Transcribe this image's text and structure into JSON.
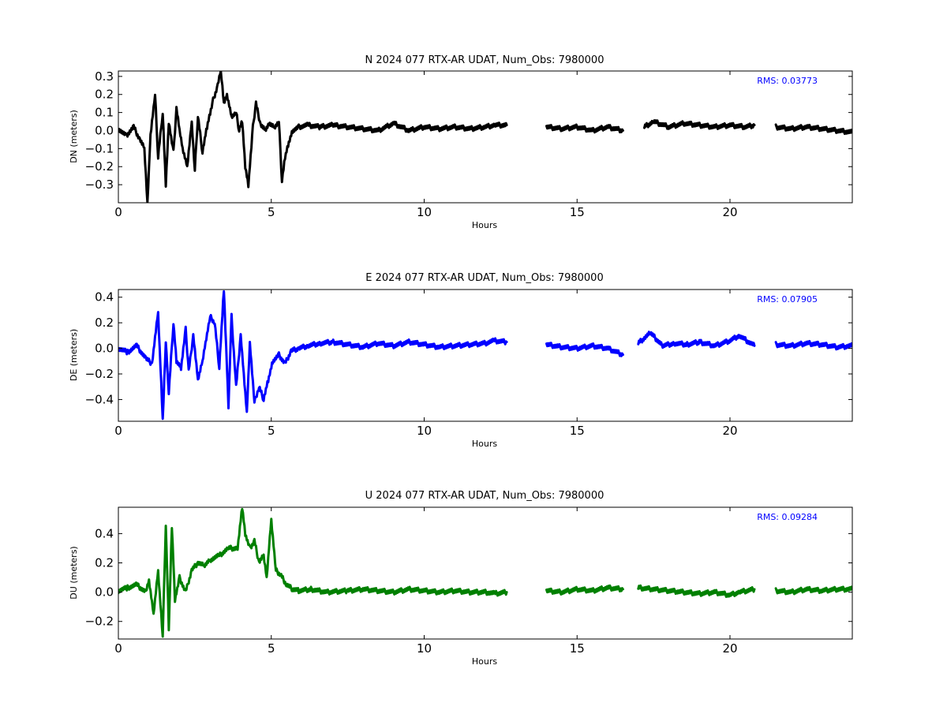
{
  "chart_data": [
    {
      "type": "line",
      "title": "N 2024 077 RTX-AR  UDAT, Num_Obs: 7980000",
      "xlabel": "Hours",
      "ylabel": "DN (meters)",
      "xlim": [
        0,
        24
      ],
      "ylim": [
        -0.4,
        0.33
      ],
      "xticks": [
        "0",
        "5",
        "10",
        "15",
        "20"
      ],
      "yticks": [
        "0.3",
        "0.2",
        "0.1",
        "0.0",
        "−0.1",
        "−0.2",
        "−0.3"
      ],
      "ytick_values": [
        0.3,
        0.2,
        0.1,
        0.0,
        -0.1,
        -0.2,
        -0.3
      ],
      "annotation": "RMS:  0.03773",
      "annotation_color": "#0000ff",
      "series": [
        {
          "color": "#000000",
          "x": [
            0.0,
            0.25,
            0.5,
            0.7,
            0.85,
            0.95,
            1.05,
            1.2,
            1.3,
            1.45,
            1.55,
            1.65,
            1.8,
            1.9,
            2.0,
            2.1,
            2.25,
            2.4,
            2.5,
            2.6,
            2.75,
            2.9,
            3.0,
            3.1,
            3.25,
            3.35,
            3.45,
            3.55,
            3.7,
            3.85,
            3.95,
            4.05,
            4.15,
            4.25,
            4.4,
            4.5,
            4.65,
            4.8,
            4.95,
            5.1,
            5.25,
            5.35,
            5.45,
            5.55,
            5.7,
            5.9,
            6.2,
            6.6,
            7.0,
            7.5,
            8.0,
            8.5,
            9.0,
            9.5,
            10.0,
            10.5,
            11.0,
            11.5,
            12.0,
            12.3,
            12.7,
            13.5,
            14.0,
            14.5,
            15.0,
            15.5,
            16.0,
            16.5,
            16.7,
            17.2,
            17.5,
            18.0,
            18.5,
            19.0,
            19.5,
            20.0,
            20.5,
            20.8,
            21.0,
            21.5,
            22.0,
            22.5,
            23.0,
            23.5,
            24.0
          ],
          "y": [
            0.01,
            -0.03,
            0.02,
            -0.05,
            -0.1,
            -0.4,
            -0.02,
            0.2,
            -0.15,
            0.1,
            -0.3,
            0.05,
            -0.12,
            0.12,
            0.0,
            -0.1,
            -0.2,
            0.05,
            -0.22,
            0.08,
            -0.12,
            0.02,
            0.1,
            0.17,
            0.25,
            0.33,
            0.15,
            0.2,
            0.08,
            0.1,
            0.0,
            0.05,
            -0.2,
            -0.3,
            0.02,
            0.15,
            0.03,
            0.0,
            0.04,
            0.02,
            0.05,
            -0.28,
            -0.15,
            -0.08,
            0.0,
            0.02,
            0.03,
            0.02,
            0.03,
            0.02,
            0.01,
            0.0,
            0.04,
            0.0,
            0.02,
            0.01,
            0.02,
            0.01,
            0.02,
            0.03,
            0.03,
            null,
            0.02,
            0.01,
            0.02,
            0.0,
            0.02,
            0.0,
            null,
            0.02,
            0.05,
            0.02,
            0.04,
            0.03,
            0.02,
            0.03,
            0.02,
            0.03,
            null,
            0.02,
            0.01,
            0.02,
            0.01,
            0.0,
            -0.01
          ]
        }
      ]
    },
    {
      "type": "line",
      "title": "E 2024 077 RTX-AR  UDAT, Num_Obs: 7980000",
      "xlabel": "Hours",
      "ylabel": "DE (meters)",
      "xlim": [
        0,
        24
      ],
      "ylim": [
        -0.57,
        0.46
      ],
      "xticks": [
        "0",
        "5",
        "10",
        "15",
        "20"
      ],
      "yticks": [
        "0.4",
        "0.2",
        "0.0",
        "−0.2",
        "−0.4"
      ],
      "ytick_values": [
        0.4,
        0.2,
        0.0,
        -0.2,
        -0.4
      ],
      "annotation": "RMS:  0.07905",
      "annotation_color": "#0000ff",
      "series": [
        {
          "color": "#0000ff",
          "x": [
            0.0,
            0.3,
            0.6,
            0.9,
            1.1,
            1.3,
            1.45,
            1.55,
            1.65,
            1.8,
            1.9,
            2.05,
            2.2,
            2.3,
            2.45,
            2.6,
            2.75,
            2.85,
            3.0,
            3.15,
            3.3,
            3.45,
            3.6,
            3.7,
            3.85,
            4.0,
            4.1,
            4.2,
            4.3,
            4.45,
            4.6,
            4.75,
            4.9,
            5.05,
            5.25,
            5.45,
            5.65,
            5.9,
            6.2,
            6.6,
            7.0,
            7.5,
            8.0,
            8.5,
            9.0,
            9.5,
            10.0,
            10.5,
            11.0,
            11.5,
            12.0,
            12.3,
            12.7,
            13.5,
            14.0,
            14.5,
            15.0,
            15.5,
            16.0,
            16.5,
            16.7,
            17.0,
            17.4,
            17.8,
            18.2,
            18.6,
            19.0,
            19.5,
            20.0,
            20.3,
            20.8,
            21.0,
            21.5,
            22.0,
            22.5,
            23.0,
            23.5,
            24.0
          ],
          "y": [
            0.0,
            -0.03,
            0.02,
            -0.08,
            -0.12,
            0.28,
            -0.55,
            0.05,
            -0.35,
            0.2,
            -0.1,
            -0.15,
            0.15,
            -0.18,
            0.1,
            -0.25,
            -0.1,
            0.05,
            0.25,
            0.2,
            -0.15,
            0.46,
            -0.45,
            0.25,
            -0.3,
            0.1,
            -0.2,
            -0.5,
            0.05,
            -0.42,
            -0.3,
            -0.4,
            -0.25,
            -0.1,
            -0.05,
            -0.12,
            -0.02,
            0.0,
            0.02,
            0.04,
            0.05,
            0.03,
            0.01,
            0.04,
            0.02,
            0.05,
            0.03,
            0.01,
            0.02,
            0.03,
            0.04,
            0.06,
            0.05,
            null,
            0.03,
            0.01,
            0.0,
            0.02,
            0.0,
            -0.05,
            null,
            0.04,
            0.12,
            0.02,
            0.04,
            0.03,
            0.05,
            0.02,
            0.06,
            0.1,
            0.02,
            null,
            0.03,
            0.02,
            0.04,
            0.03,
            0.01,
            0.02
          ]
        }
      ]
    },
    {
      "type": "line",
      "title": "U 2024 077 RTX-AR  UDAT, Num_Obs: 7980000",
      "xlabel": "Hours",
      "ylabel": "DU (meters)",
      "xlim": [
        0,
        24
      ],
      "ylim": [
        -0.32,
        0.58
      ],
      "xticks": [
        "0",
        "5",
        "10",
        "15",
        "20"
      ],
      "yticks": [
        "0.4",
        "0.2",
        "0.0",
        "−0.2"
      ],
      "ytick_values": [
        0.4,
        0.2,
        0.0,
        -0.2
      ],
      "annotation": "RMS:  0.09284",
      "annotation_color": "#0000ff",
      "series": [
        {
          "color": "#008000",
          "x": [
            0.0,
            0.3,
            0.6,
            0.9,
            1.0,
            1.15,
            1.3,
            1.45,
            1.55,
            1.65,
            1.75,
            1.85,
            2.0,
            2.2,
            2.4,
            2.6,
            2.8,
            3.0,
            3.3,
            3.6,
            3.9,
            4.05,
            4.15,
            4.3,
            4.45,
            4.6,
            4.75,
            4.85,
            5.0,
            5.15,
            5.3,
            5.5,
            5.7,
            5.9,
            6.3,
            6.8,
            7.5,
            8.0,
            8.5,
            9.0,
            9.5,
            10.0,
            10.5,
            11.0,
            11.5,
            12.0,
            12.3,
            12.7,
            13.5,
            14.0,
            14.5,
            15.0,
            15.5,
            16.0,
            16.5,
            16.7,
            17.0,
            17.5,
            18.0,
            18.5,
            19.0,
            19.5,
            20.0,
            20.3,
            20.8,
            21.0,
            21.5,
            22.0,
            22.5,
            23.0,
            23.5,
            24.0
          ],
          "y": [
            0.01,
            0.03,
            0.05,
            0.0,
            0.08,
            -0.15,
            0.15,
            -0.3,
            0.46,
            -0.25,
            0.45,
            -0.05,
            0.1,
            0.0,
            0.15,
            0.2,
            0.18,
            0.22,
            0.25,
            0.3,
            0.3,
            0.58,
            0.4,
            0.3,
            0.35,
            0.2,
            0.25,
            0.1,
            0.5,
            0.15,
            0.12,
            0.05,
            0.02,
            0.01,
            0.02,
            0.0,
            0.01,
            0.02,
            0.01,
            0.0,
            0.02,
            0.01,
            0.0,
            0.01,
            0.0,
            0.0,
            -0.01,
            0.0,
            null,
            0.01,
            0.0,
            0.02,
            0.01,
            0.03,
            0.02,
            null,
            0.03,
            0.02,
            0.01,
            0.0,
            -0.01,
            0.0,
            -0.02,
            0.0,
            0.02,
            null,
            0.01,
            0.0,
            0.02,
            0.01,
            0.02,
            0.02
          ]
        }
      ]
    }
  ]
}
